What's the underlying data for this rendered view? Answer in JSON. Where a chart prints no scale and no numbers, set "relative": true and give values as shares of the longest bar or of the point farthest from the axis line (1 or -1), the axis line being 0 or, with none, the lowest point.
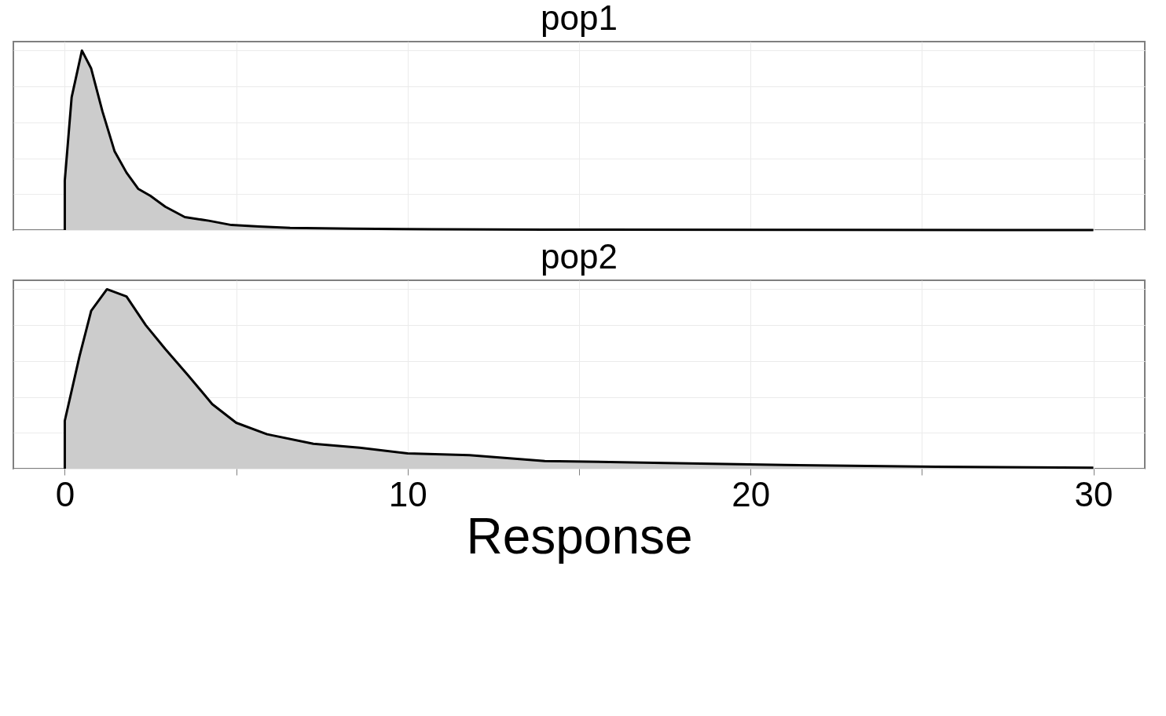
{
  "chart_data": [
    {
      "type": "area",
      "title": "pop1",
      "relative": true,
      "grid": true,
      "tick_labels": false,
      "xlim": [
        -1.5,
        31.5
      ],
      "xticks": [
        0,
        {
          "value": 5,
          "label": null
        },
        10,
        {
          "value": 15,
          "label": null
        },
        20,
        {
          "value": 25,
          "label": null
        },
        30
      ],
      "x": [
        0,
        0,
        0.2,
        0.5,
        0.77,
        1.1,
        1.45,
        1.8,
        2.14,
        2.5,
        2.93,
        3.5,
        4.2,
        4.86,
        5.66,
        6.57,
        8.4,
        10.7,
        14,
        21,
        30
      ],
      "series": [
        {
          "color": "#cccccc",
          "values": [
            0,
            0.275,
            0.74,
            1.0,
            0.9,
            0.66,
            0.44,
            0.32,
            0.23,
            0.19,
            0.13,
            0.072,
            0.052,
            0.028,
            0.02,
            0.012,
            0.008,
            0.004,
            0.002,
            0.001,
            0
          ]
        }
      ]
    },
    {
      "type": "area",
      "title": "pop2",
      "relative": true,
      "grid": true,
      "tick_labels": "x",
      "xlabel": "Response",
      "xlim": [
        -1.5,
        31.5
      ],
      "xticks": [
        0,
        {
          "value": 5,
          "label": null
        },
        10,
        {
          "value": 15,
          "label": null
        },
        20,
        {
          "value": 25,
          "label": null
        },
        30
      ],
      "x": [
        0,
        0,
        0.43,
        0.77,
        1.23,
        1.8,
        2.36,
        2.93,
        3.6,
        4.3,
        5.0,
        5.9,
        7.25,
        8.6,
        10,
        11.8,
        14,
        17.5,
        21,
        25.4,
        30
      ],
      "series": [
        {
          "color": "#cccccc",
          "values": [
            0,
            0.267,
            0.627,
            0.88,
            1.0,
            0.96,
            0.8,
            0.667,
            0.52,
            0.36,
            0.256,
            0.192,
            0.139,
            0.117,
            0.085,
            0.075,
            0.043,
            0.032,
            0.021,
            0.011,
            0.005
          ]
        }
      ]
    }
  ]
}
